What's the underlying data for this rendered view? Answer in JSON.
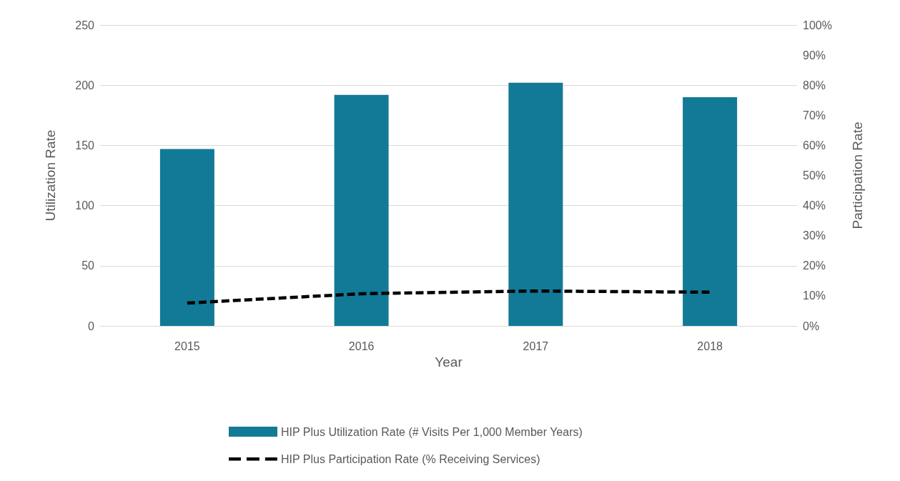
{
  "chart_data": {
    "type": "bar",
    "xlabel": "Year",
    "ylabel": "Utilization Rate",
    "y2label": "Participation Rate",
    "categories": [
      "2015",
      "2016",
      "2017",
      "2018"
    ],
    "series": [
      {
        "name": "HIP Plus Utilization Rate (# Visits Per 1,000 Member Years)",
        "color": "#127a96",
        "values": [
          147,
          192,
          202,
          190
        ]
      },
      {
        "name": "HIP Plus Participation Rate (% Receiving Services)",
        "type": "line",
        "axis": "y2",
        "color": "#000000",
        "line_style": "dashed",
        "marker": "none",
        "values": [
          7.6,
          10.7,
          11.6,
          11.2
        ]
      }
    ],
    "ylim": [
      0,
      250
    ],
    "yticks": [
      0,
      50,
      100,
      150,
      200,
      250
    ],
    "y2lim": [
      0,
      100
    ],
    "y2ticks": [
      {
        "value": 0,
        "label": "0%"
      },
      {
        "value": 10,
        "label": "10%"
      },
      {
        "value": 20,
        "label": "20%"
      },
      {
        "value": 30,
        "label": "30%"
      },
      {
        "value": 40,
        "label": "40%"
      },
      {
        "value": 50,
        "label": "50%"
      },
      {
        "value": 60,
        "label": "60%"
      },
      {
        "value": 70,
        "label": "70%"
      },
      {
        "value": 80,
        "label": "80%"
      },
      {
        "value": 90,
        "label": "90%"
      },
      {
        "value": 100,
        "label": "100%"
      }
    ],
    "grid": "y",
    "legend": "bottom"
  }
}
